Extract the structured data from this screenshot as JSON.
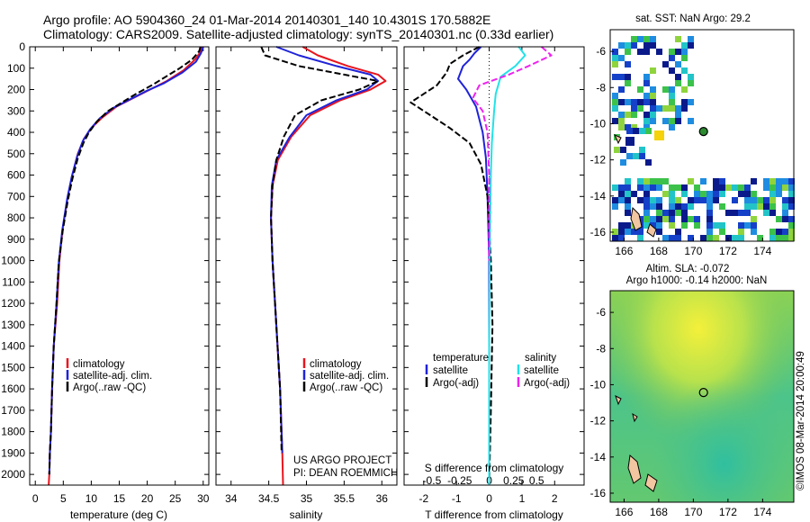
{
  "header": {
    "line1": "Argo profile: AO 5904360_24 01-Mar-2014 20140301_140 10.4301S 170.5882E",
    "line2": "Climatology: CARS2009. Satellite-adjusted climatology: synTS_20140301.nc (0.33d earlier)"
  },
  "colors": {
    "climatology": "#e8141e",
    "satellite": "#1f23d8",
    "argo": "#000000",
    "salinity_satellite": "#22e2e8",
    "salinity_argo": "#ee22ee",
    "land": "#f2c6a0",
    "map_sea": "#6cc25c"
  },
  "chart_data": [
    {
      "id": "temperature",
      "type": "line",
      "xlabel": "temperature (deg C)",
      "ylabel": "",
      "xlim": [
        -1,
        31
      ],
      "ylim": [
        2050,
        0
      ],
      "xticks": [
        0,
        5,
        10,
        15,
        20,
        25,
        30
      ],
      "yticks": [
        0,
        100,
        200,
        300,
        400,
        500,
        600,
        700,
        800,
        900,
        1000,
        1100,
        1200,
        1300,
        1400,
        1500,
        1600,
        1700,
        1800,
        1900,
        2000
      ],
      "y_inverted": true,
      "legend": [
        "climatology",
        "satellite-adj. clim.",
        "Argo(..raw -QC)"
      ],
      "series": [
        {
          "name": "climatology",
          "color": "#e8141e",
          "style": "solid",
          "x": [
            29.8,
            29.5,
            28.5,
            26.5,
            23.5,
            20.5,
            17.5,
            14.5,
            12.0,
            10.0,
            8.7,
            7.6,
            6.6,
            5.8,
            4.9,
            4.3,
            3.9,
            3.3,
            3.0,
            2.8,
            2.6,
            2.5,
            2.4,
            2.4
          ],
          "y": [
            0,
            25,
            60,
            110,
            160,
            200,
            240,
            280,
            330,
            380,
            430,
            500,
            600,
            700,
            850,
            1000,
            1200,
            1400,
            1600,
            1800,
            1900,
            2000,
            2050,
            2050
          ]
        },
        {
          "name": "satellite-adj. clim.",
          "color": "#1f23d8",
          "style": "solid",
          "x": [
            30.0,
            29.6,
            28.7,
            26.3,
            23.0,
            20.0,
            17.0,
            14.0,
            11.5,
            9.8,
            8.5,
            7.5,
            6.5,
            5.7,
            4.8,
            4.2,
            3.8,
            3.3,
            3.0,
            2.8,
            2.6,
            2.5
          ],
          "y": [
            0,
            30,
            70,
            120,
            170,
            205,
            245,
            285,
            335,
            385,
            440,
            510,
            610,
            710,
            860,
            1010,
            1200,
            1400,
            1600,
            1800,
            1900,
            2000
          ]
        },
        {
          "name": "Argo(..raw -QC)",
          "color": "#000000",
          "style": "dashed",
          "x": [
            29.5,
            29.3,
            28.0,
            25.8,
            23.3,
            20.8,
            18.0,
            15.5,
            13.0,
            11.0,
            9.6,
            8.6,
            7.6,
            6.6,
            5.8,
            4.9,
            4.2,
            3.8,
            3.3,
            3.0,
            2.8,
            2.6,
            2.5
          ],
          "y": [
            0,
            20,
            60,
            100,
            140,
            180,
            220,
            260,
            300,
            350,
            400,
            450,
            520,
            620,
            720,
            860,
            1010,
            1200,
            1400,
            1600,
            1800,
            1900,
            2000
          ]
        }
      ]
    },
    {
      "id": "salinity",
      "type": "line",
      "xlabel": "salinity",
      "ylabel": "",
      "xlim": [
        33.8,
        36.2
      ],
      "ylim": [
        2050,
        0
      ],
      "xticks": [
        34,
        34.5,
        35,
        35.5,
        36
      ],
      "y_inverted": true,
      "legend": [
        "climatology",
        "satellite-adj. clim.",
        "Argo(..raw -QC)"
      ],
      "series": [
        {
          "name": "climatology",
          "color": "#e8141e",
          "style": "solid",
          "x": [
            34.95,
            35.15,
            35.55,
            35.95,
            36.05,
            35.85,
            35.45,
            35.05,
            34.8,
            34.62,
            34.55,
            34.53,
            34.55,
            34.6,
            34.65,
            34.68,
            34.69
          ],
          "y": [
            0,
            40,
            90,
            130,
            160,
            200,
            250,
            320,
            420,
            530,
            650,
            800,
            1000,
            1300,
            1600,
            1900,
            2050
          ]
        },
        {
          "name": "satellite-adj. clim.",
          "color": "#1f23d8",
          "style": "solid",
          "x": [
            34.6,
            34.9,
            35.4,
            35.85,
            35.95,
            35.8,
            35.4,
            35.0,
            34.78,
            34.6,
            34.54,
            34.53,
            34.55,
            34.6,
            34.65,
            34.68
          ],
          "y": [
            0,
            40,
            90,
            130,
            160,
            200,
            250,
            320,
            420,
            530,
            650,
            800,
            1000,
            1300,
            1600,
            1900
          ]
        },
        {
          "name": "Argo(..raw -QC)",
          "color": "#000000",
          "style": "dashed",
          "x": [
            34.4,
            34.45,
            34.9,
            35.5,
            35.95,
            35.7,
            35.2,
            34.85,
            34.7,
            34.6,
            34.55,
            34.53,
            34.55,
            34.6,
            34.65,
            34.67
          ],
          "y": [
            0,
            40,
            90,
            130,
            160,
            200,
            250,
            320,
            420,
            530,
            650,
            800,
            1000,
            1300,
            1600,
            1900
          ]
        }
      ]
    },
    {
      "id": "differences",
      "type": "line",
      "xlabel": "T difference from climatology",
      "xlabel2": "S difference from climatology",
      "xlim": [
        -2.6,
        2.9
      ],
      "ylim": [
        2050,
        0
      ],
      "xticks": [
        -2,
        -1,
        0,
        1,
        2
      ],
      "xticks_s": [
        "-0.5",
        "-0.25",
        "0",
        "0.25",
        "0.5"
      ],
      "xticks_s_pos": [
        -1.75,
        -0.9,
        0,
        0.75,
        1.45
      ],
      "y_inverted": true,
      "legend_left_title": "temperature",
      "legend_right_title": "salinity",
      "legend": [
        "satellite",
        "Argo(-adj)",
        "satellite",
        "Argo(-adj)"
      ],
      "series": [
        {
          "name": "satellite",
          "quantity": "temperature",
          "color": "#1f23d8",
          "style": "solid",
          "x": [
            -0.25,
            -0.45,
            -0.6,
            -0.8,
            -0.95,
            -0.7,
            -0.4,
            -0.2,
            -0.1,
            -0.05,
            0.0,
            0.0,
            0.0,
            0.0
          ],
          "y": [
            0,
            30,
            60,
            90,
            150,
            200,
            280,
            400,
            520,
            700,
            1000,
            1400,
            1800,
            2050
          ]
        },
        {
          "name": "Argo(-adj)",
          "quantity": "temperature",
          "color": "#000000",
          "style": "dashed",
          "x": [
            -0.3,
            -0.8,
            -1.2,
            -1.3,
            -1.6,
            -2.4,
            -1.8,
            -1.2,
            -0.6,
            -0.25,
            -0.05,
            0.05,
            0.1,
            0.05,
            0.0
          ],
          "y": [
            0,
            40,
            80,
            120,
            180,
            260,
            320,
            380,
            450,
            550,
            700,
            1000,
            1300,
            1700,
            2050
          ]
        },
        {
          "name": "satellite",
          "quantity": "salinity",
          "color": "#22e2e8",
          "style": "solid",
          "x": [
            0.9,
            1.1,
            0.8,
            0.35,
            0.2,
            0.15,
            0.08,
            0.05,
            0.02,
            0.0,
            0.0
          ],
          "y": [
            0,
            40,
            90,
            140,
            220,
            300,
            450,
            600,
            900,
            1400,
            2050
          ]
        },
        {
          "name": "Argo(-adj)",
          "quantity": "salinity",
          "color": "#ee22ee",
          "style": "dashed",
          "x": [
            1.6,
            1.9,
            1.2,
            0.6,
            -0.3,
            -0.5,
            -0.2,
            -0.05,
            0.0,
            0.0
          ],
          "y": [
            0,
            40,
            90,
            130,
            180,
            240,
            300,
            400,
            600,
            1000
          ]
        }
      ]
    },
    {
      "id": "sst-map",
      "type": "heatmap",
      "title": "sat. SST: NaN Argo: 29.2",
      "xlim": [
        165.2,
        175.8
      ],
      "ylim": [
        -16.5,
        -4.8
      ],
      "xticks": [
        166,
        168,
        170,
        172,
        174
      ],
      "yticks": [
        -6,
        -8,
        -10,
        -12,
        -14,
        -16
      ],
      "argo_position": [
        170.59,
        -10.43
      ]
    },
    {
      "id": "sla-map",
      "type": "heatmap",
      "title": "Altim. SLA: -0.072",
      "subtitle": "Argo h1000: -0.14 h2000: NaN",
      "xlim": [
        165.2,
        175.8
      ],
      "ylim": [
        -16.5,
        -4.8
      ],
      "xticks": [
        166,
        168,
        170,
        172,
        174
      ],
      "yticks": [
        -6,
        -8,
        -10,
        -12,
        -14,
        -16
      ],
      "argo_position": [
        170.59,
        -10.43
      ]
    }
  ],
  "annotations": {
    "project_line1": "US ARGO PROJECT",
    "project_line2": "PI: DEAN ROEMMICH",
    "watermark": "©IMOS 08-Mar-2014 20:00:49"
  }
}
